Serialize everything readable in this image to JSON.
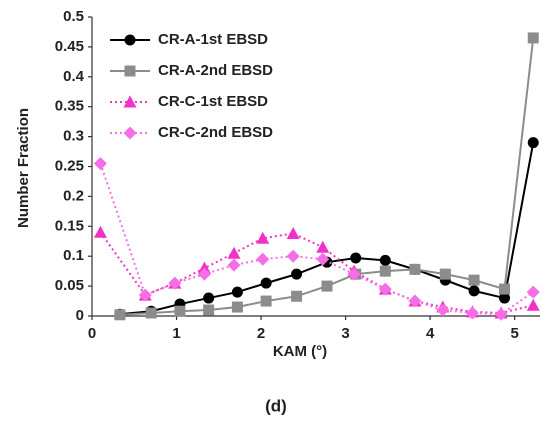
{
  "chart_data": {
    "type": "line",
    "caption": "(d)",
    "x_label": "KAM (°)",
    "y_label": "Number Fraction",
    "xlim": [
      0,
      5.3
    ],
    "xticks": [
      0,
      1,
      2,
      3,
      4,
      5
    ],
    "ylim": [
      0,
      0.5
    ],
    "yticks": [
      0,
      0.05,
      0.1,
      0.15,
      0.2,
      0.25,
      0.3,
      0.35,
      0.4,
      0.45,
      0.5
    ],
    "legend": "upper left",
    "series": [
      {
        "name": "CR-A-1st EBSD",
        "color": "#000000",
        "marker": "circle",
        "dash": "solid",
        "x": [
          0.33,
          0.7,
          1.04,
          1.38,
          1.72,
          2.06,
          2.42,
          2.78,
          3.12,
          3.47,
          3.82,
          4.18,
          4.52,
          4.88,
          5.22
        ],
        "values": [
          0.003,
          0.008,
          0.02,
          0.03,
          0.04,
          0.055,
          0.07,
          0.09,
          0.097,
          0.093,
          0.078,
          0.06,
          0.042,
          0.03,
          0.29
        ]
      },
      {
        "name": "CR-A-2nd EBSD",
        "color": "#8c8c8c",
        "marker": "square",
        "dash": "solid",
        "x": [
          0.33,
          0.7,
          1.04,
          1.38,
          1.72,
          2.06,
          2.42,
          2.78,
          3.12,
          3.47,
          3.82,
          4.18,
          4.52,
          4.88,
          5.22
        ],
        "values": [
          0.002,
          0.005,
          0.008,
          0.01,
          0.015,
          0.025,
          0.033,
          0.05,
          0.07,
          0.075,
          0.078,
          0.07,
          0.06,
          0.045,
          0.465
        ]
      },
      {
        "name": "CR-C-1st EBSD",
        "color": "#f032c8",
        "marker": "triangle",
        "dash": "dotted",
        "x": [
          0.1,
          0.63,
          0.98,
          1.33,
          1.68,
          2.02,
          2.38,
          2.73,
          3.1,
          3.47,
          3.82,
          4.15,
          4.5,
          4.84,
          5.22
        ],
        "values": [
          0.14,
          0.035,
          0.055,
          0.08,
          0.105,
          0.13,
          0.138,
          0.115,
          0.075,
          0.045,
          0.025,
          0.015,
          0.007,
          0.005,
          0.018
        ]
      },
      {
        "name": "CR-C-2nd EBSD",
        "color": "#f56ee6",
        "marker": "diamond",
        "dash": "dotted",
        "x": [
          0.1,
          0.63,
          0.98,
          1.33,
          1.68,
          2.02,
          2.38,
          2.73,
          3.1,
          3.47,
          3.82,
          4.15,
          4.5,
          4.84,
          5.22
        ],
        "values": [
          0.255,
          0.035,
          0.055,
          0.07,
          0.085,
          0.095,
          0.1,
          0.095,
          0.07,
          0.045,
          0.025,
          0.01,
          0.005,
          0.003,
          0.04
        ]
      }
    ]
  }
}
